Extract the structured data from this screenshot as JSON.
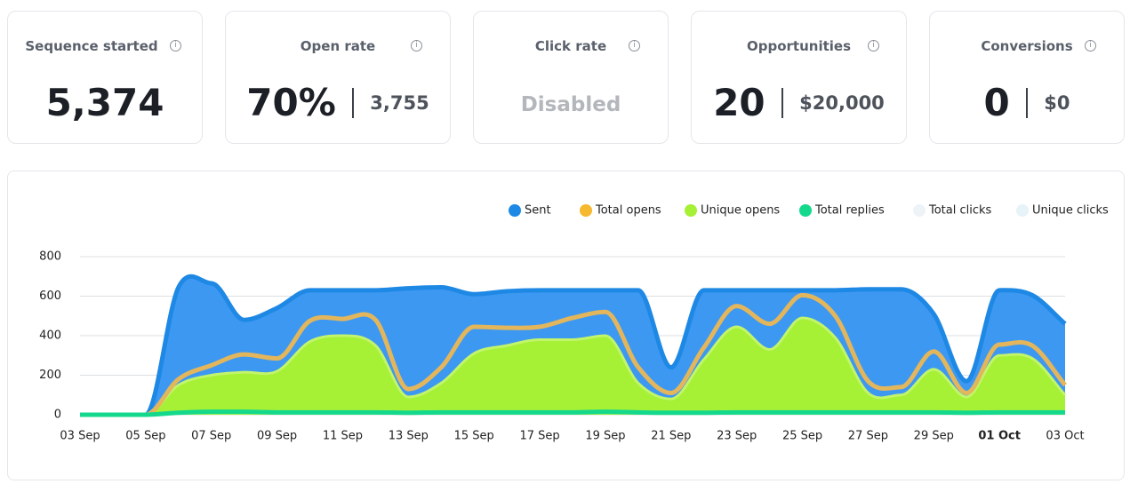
{
  "cards": [
    {
      "title": "Sequence started",
      "value": "5,374"
    },
    {
      "title": "Open rate",
      "value": "70%",
      "secondary": "3,755"
    },
    {
      "title": "Click rate",
      "status": "Disabled"
    },
    {
      "title": "Opportunities",
      "value": "20",
      "secondary": "$20,000"
    },
    {
      "title": "Conversions",
      "value": "0",
      "secondary": "$0"
    }
  ],
  "chart_data": {
    "type": "area",
    "grid": true,
    "categories": [
      "03 Sep",
      null,
      "05 Sep",
      null,
      "07 Sep",
      null,
      "09 Sep",
      null,
      "11 Sep",
      null,
      "13 Sep",
      null,
      "15 Sep",
      null,
      "17 Sep",
      null,
      "19 Sep",
      null,
      "21 Sep",
      null,
      "23 Sep",
      null,
      "25 Sep",
      null,
      "27 Sep",
      null,
      "29 Sep",
      null,
      "01 Oct",
      null,
      "03 Oct"
    ],
    "ylim": [
      0,
      800
    ],
    "yticks": [
      0,
      200,
      400,
      600,
      800
    ],
    "series": [
      {
        "name": "Sent",
        "color": "#1e88e5",
        "values": [
          0,
          0,
          0,
          645,
          665,
          480,
          540,
          630,
          630,
          630,
          640,
          645,
          610,
          625,
          630,
          630,
          630,
          630,
          240,
          630,
          630,
          630,
          630,
          630,
          635,
          635,
          510,
          170,
          630,
          605,
          460
        ]
      },
      {
        "name": "Total opens",
        "color": "#f5b82e",
        "values": [
          0,
          0,
          0,
          180,
          250,
          305,
          285,
          475,
          485,
          480,
          130,
          240,
          445,
          440,
          445,
          490,
          520,
          240,
          110,
          340,
          550,
          460,
          605,
          500,
          170,
          140,
          320,
          110,
          355,
          350,
          150
        ]
      },
      {
        "name": "Unique opens",
        "color": "#a6f035",
        "values": [
          0,
          0,
          0,
          150,
          200,
          215,
          220,
          370,
          400,
          350,
          90,
          160,
          310,
          350,
          380,
          380,
          400,
          160,
          80,
          280,
          445,
          330,
          490,
          390,
          110,
          100,
          230,
          90,
          300,
          285,
          100
        ]
      },
      {
        "name": "Total replies",
        "color": "#14d98c",
        "values": [
          0,
          0,
          0,
          10,
          15,
          15,
          12,
          12,
          12,
          12,
          10,
          12,
          12,
          12,
          12,
          12,
          15,
          12,
          10,
          10,
          12,
          12,
          12,
          12,
          12,
          12,
          12,
          10,
          12,
          12,
          12
        ]
      },
      {
        "name": "Total clicks",
        "color": "#eef3f8",
        "hidden": true
      },
      {
        "name": "Unique clicks",
        "color": "#e6f3f8",
        "hidden": true
      }
    ]
  }
}
